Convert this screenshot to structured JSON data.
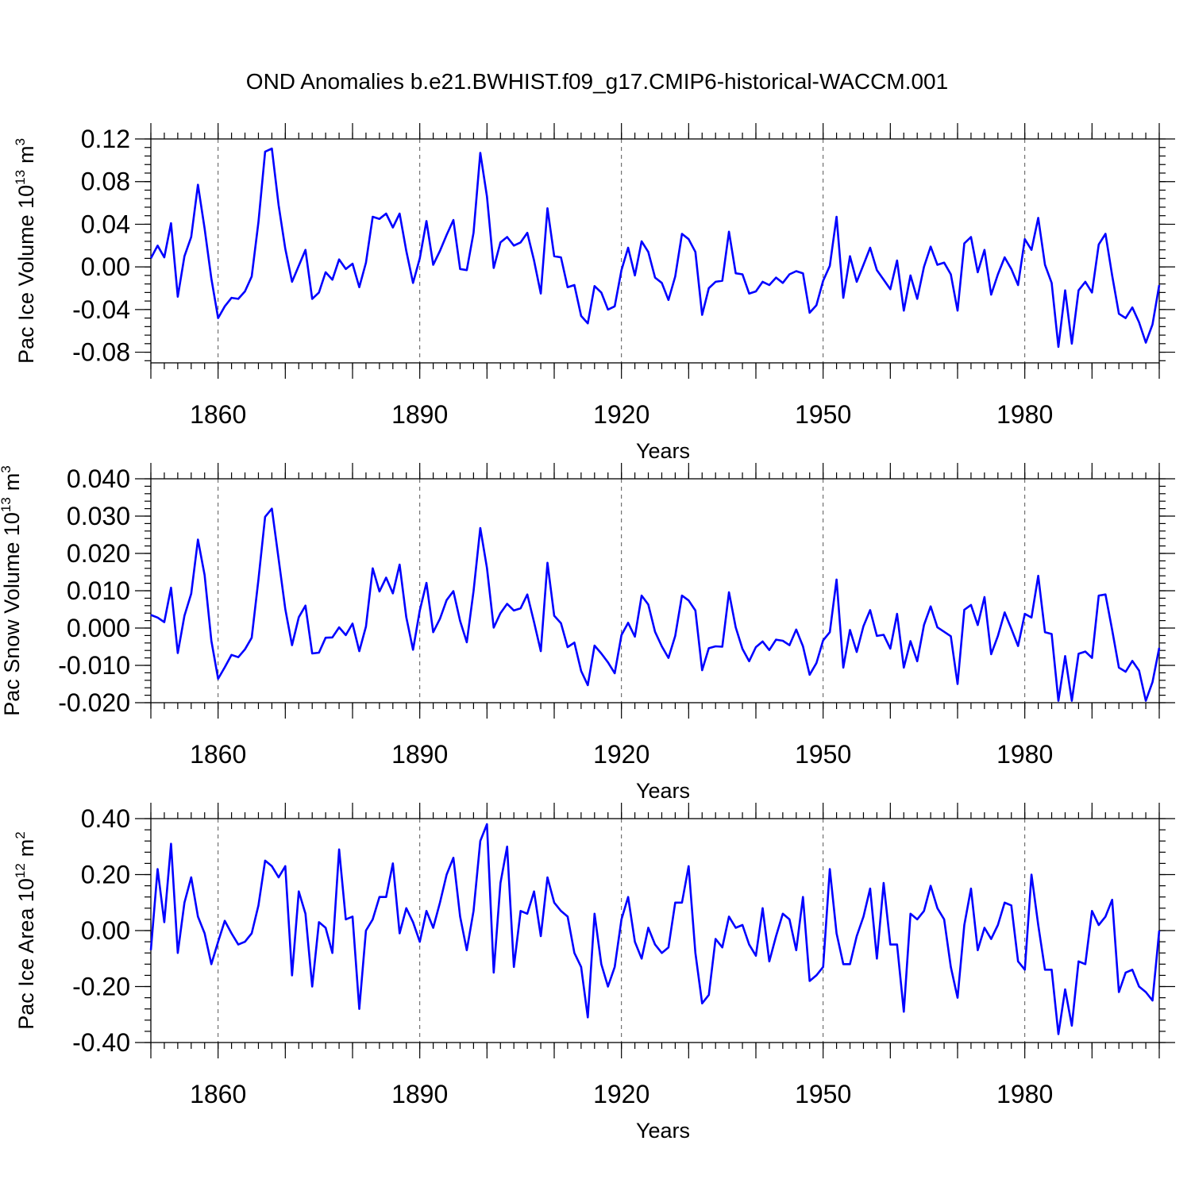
{
  "title": "OND Anomalies b.e21.BWHIST.f09_g17.CMIP6-historical-WACCM.001",
  "colors": {
    "line": "#0000ff",
    "axis": "#000000",
    "grid": "#555555"
  },
  "chart_data": [
    {
      "type": "line",
      "name": "pac-ice-volume",
      "ylabel_main": "Pac Ice Volume 10",
      "ylabel_exp": "13",
      "ylabel_unit": "m",
      "ylabel_unit_exp": "3",
      "xlabel": "Years",
      "xlim": [
        1850,
        2000
      ],
      "ylim": [
        -0.09,
        0.12
      ],
      "yticks": [
        0.12,
        0.08,
        0.04,
        0.0,
        -0.04,
        -0.08
      ],
      "ytick_labels": [
        "0.12",
        "0.08",
        "0.04",
        "0.00",
        "-0.04",
        "-0.08"
      ],
      "xticks": [
        1860,
        1890,
        1920,
        1950,
        1980
      ],
      "xtick_labels": [
        "1860",
        "1890",
        "1920",
        "1950",
        "1980"
      ],
      "grid_x": [
        1860,
        1890,
        1920,
        1950,
        1980
      ],
      "x_start": 1850,
      "values": [
        0.008,
        0.02,
        0.009,
        0.041,
        -0.028,
        0.01,
        0.028,
        0.077,
        0.036,
        -0.011,
        -0.048,
        -0.037,
        -0.029,
        -0.03,
        -0.023,
        -0.009,
        0.042,
        0.108,
        0.111,
        0.058,
        0.017,
        -0.014,
        0.001,
        0.016,
        -0.03,
        -0.024,
        -0.005,
        -0.012,
        0.007,
        -0.002,
        0.003,
        -0.019,
        0.004,
        0.047,
        0.045,
        0.05,
        0.037,
        0.05,
        0.015,
        -0.015,
        0.008,
        0.043,
        0.002,
        0.015,
        0.03,
        0.044,
        -0.002,
        -0.003,
        0.032,
        0.107,
        0.066,
        -0.001,
        0.023,
        0.028,
        0.02,
        0.023,
        0.032,
        0.006,
        -0.025,
        0.055,
        0.01,
        0.009,
        -0.019,
        -0.017,
        -0.046,
        -0.053,
        -0.018,
        -0.024,
        -0.04,
        -0.037,
        -0.003,
        0.018,
        -0.008,
        0.024,
        0.014,
        -0.01,
        -0.015,
        -0.031,
        -0.009,
        0.031,
        0.026,
        0.014,
        -0.045,
        -0.02,
        -0.014,
        -0.013,
        0.033,
        -0.006,
        -0.007,
        -0.025,
        -0.023,
        -0.014,
        -0.017,
        -0.01,
        -0.015,
        -0.007,
        -0.004,
        -0.006,
        -0.043,
        -0.036,
        -0.013,
        0.001,
        0.047,
        -0.029,
        0.01,
        -0.014,
        0.002,
        0.018,
        -0.003,
        -0.012,
        -0.021,
        0.006,
        -0.041,
        -0.008,
        -0.03,
        0.0,
        0.019,
        0.002,
        0.004,
        -0.007,
        -0.041,
        0.022,
        0.028,
        -0.005,
        0.016,
        -0.026,
        -0.007,
        0.009,
        -0.002,
        -0.017,
        0.026,
        0.016,
        0.046,
        0.002,
        -0.015,
        -0.075,
        -0.022,
        -0.072,
        -0.022,
        -0.014,
        -0.024,
        0.021,
        0.031,
        -0.008,
        -0.044,
        -0.048,
        -0.038,
        -0.052,
        -0.071,
        -0.054,
        -0.017
      ]
    },
    {
      "type": "line",
      "name": "pac-snow-volume",
      "ylabel_main": "Pac Snow Volume 10",
      "ylabel_exp": "13",
      "ylabel_unit": "m",
      "ylabel_unit_exp": "3",
      "xlabel": "Years",
      "xlim": [
        1850,
        2000
      ],
      "ylim": [
        -0.02,
        0.04
      ],
      "yticks": [
        0.04,
        0.03,
        0.02,
        0.01,
        0.0,
        -0.01,
        -0.02
      ],
      "ytick_labels": [
        "0.040",
        "0.030",
        "0.020",
        "0.010",
        "0.000",
        "-0.010",
        "-0.020"
      ],
      "xticks": [
        1860,
        1890,
        1920,
        1950,
        1980
      ],
      "xtick_labels": [
        "1860",
        "1890",
        "1920",
        "1950",
        "1980"
      ],
      "grid_x": [
        1860,
        1890,
        1920,
        1950,
        1980
      ],
      "x_start": 1850,
      "values": [
        0.0035,
        0.0028,
        0.0016,
        0.0108,
        -0.0067,
        0.0033,
        0.0092,
        0.0237,
        0.0142,
        -0.0034,
        -0.0136,
        -0.0105,
        -0.0072,
        -0.0078,
        -0.0057,
        -0.0026,
        0.013,
        0.0298,
        0.032,
        0.0185,
        0.0051,
        -0.0046,
        0.0029,
        0.006,
        -0.0068,
        -0.0066,
        -0.0026,
        -0.0025,
        0.0002,
        -0.0019,
        0.0012,
        -0.0062,
        0.0004,
        0.016,
        0.0098,
        0.0135,
        0.0093,
        0.017,
        0.0029,
        -0.0058,
        0.0047,
        0.0121,
        -0.0011,
        0.0025,
        0.0075,
        0.0099,
        0.0019,
        -0.0038,
        0.0099,
        0.0268,
        0.0161,
        0.0001,
        0.004,
        0.0065,
        0.0047,
        0.0053,
        0.009,
        0.0016,
        -0.0062,
        0.0175,
        0.0033,
        0.0013,
        -0.0051,
        -0.0039,
        -0.0115,
        -0.0153,
        -0.0047,
        -0.0068,
        -0.0092,
        -0.0121,
        -0.0019,
        0.0014,
        -0.0023,
        0.0087,
        0.0063,
        -0.001,
        -0.0049,
        -0.008,
        -0.0021,
        0.0087,
        0.0074,
        0.0047,
        -0.0113,
        -0.0054,
        -0.0049,
        -0.005,
        0.0096,
        0.0002,
        -0.0056,
        -0.0089,
        -0.0051,
        -0.0036,
        -0.0059,
        -0.0031,
        -0.0034,
        -0.0046,
        -0.0004,
        -0.0049,
        -0.0125,
        -0.0094,
        -0.0033,
        -0.0011,
        0.013,
        -0.0106,
        -0.0005,
        -0.0064,
        0.0005,
        0.0048,
        -0.0021,
        -0.0018,
        -0.0055,
        0.0038,
        -0.0106,
        -0.0035,
        -0.0089,
        0.0008,
        0.0058,
        0.0002,
        -0.001,
        -0.0022,
        -0.015,
        0.0049,
        0.0062,
        0.0008,
        0.0083,
        -0.007,
        -0.0021,
        0.0042,
        -0.0002,
        -0.0048,
        0.0038,
        0.0028,
        0.014,
        -0.0011,
        -0.0016,
        -0.0195,
        -0.0075,
        -0.0195,
        -0.0069,
        -0.0063,
        -0.008,
        0.0087,
        0.009,
        -0.0005,
        -0.0106,
        -0.0117,
        -0.0088,
        -0.0114,
        -0.0195,
        -0.0145,
        -0.0053
      ]
    },
    {
      "type": "line",
      "name": "pac-ice-area",
      "ylabel_main": "Pac Ice Area 10",
      "ylabel_exp": "12",
      "ylabel_unit": "m",
      "ylabel_unit_exp": "2",
      "xlabel": "Years",
      "xlim": [
        1850,
        2000
      ],
      "ylim": [
        -0.4,
        0.4
      ],
      "yticks": [
        0.4,
        0.2,
        0.0,
        -0.2,
        -0.4
      ],
      "ytick_labels": [
        "0.40",
        "0.20",
        "0.00",
        "-0.20",
        "-0.40"
      ],
      "xticks": [
        1860,
        1890,
        1920,
        1950,
        1980
      ],
      "xtick_labels": [
        "1860",
        "1890",
        "1920",
        "1950",
        "1980"
      ],
      "grid_x": [
        1860,
        1890,
        1920,
        1950,
        1980
      ],
      "x_start": 1850,
      "values": [
        -0.07,
        0.22,
        0.03,
        0.31,
        -0.08,
        0.1,
        0.19,
        0.05,
        -0.01,
        -0.12,
        -0.04,
        0.035,
        -0.01,
        -0.05,
        -0.04,
        -0.01,
        0.09,
        0.25,
        0.23,
        0.19,
        0.23,
        -0.16,
        0.14,
        0.06,
        -0.2,
        0.03,
        0.01,
        -0.08,
        0.29,
        0.04,
        0.05,
        -0.28,
        0.0,
        0.04,
        0.12,
        0.12,
        0.24,
        -0.01,
        0.08,
        0.03,
        -0.04,
        0.07,
        0.01,
        0.1,
        0.2,
        0.26,
        0.05,
        -0.07,
        0.07,
        0.32,
        0.38,
        -0.15,
        0.17,
        0.3,
        -0.13,
        0.07,
        0.06,
        0.14,
        -0.02,
        0.19,
        0.1,
        0.07,
        0.05,
        -0.08,
        -0.13,
        -0.31,
        0.06,
        -0.12,
        -0.2,
        -0.13,
        0.04,
        0.12,
        -0.04,
        -0.1,
        0.01,
        -0.05,
        -0.08,
        -0.06,
        0.1,
        0.1,
        0.23,
        -0.08,
        -0.26,
        -0.23,
        -0.03,
        -0.06,
        0.05,
        0.01,
        0.02,
        -0.05,
        -0.09,
        0.08,
        -0.11,
        -0.02,
        0.06,
        0.04,
        -0.07,
        0.12,
        -0.18,
        -0.16,
        -0.13,
        0.22,
        -0.01,
        -0.12,
        -0.12,
        -0.02,
        0.05,
        0.15,
        -0.1,
        0.17,
        -0.05,
        -0.05,
        -0.29,
        0.06,
        0.04,
        0.07,
        0.16,
        0.08,
        0.04,
        -0.13,
        -0.24,
        0.02,
        0.15,
        -0.07,
        0.01,
        -0.03,
        0.02,
        0.1,
        0.09,
        -0.11,
        -0.14,
        0.2,
        0.02,
        -0.14,
        -0.14,
        -0.37,
        -0.21,
        -0.34,
        -0.11,
        -0.12,
        0.07,
        0.02,
        0.05,
        0.11,
        -0.22,
        -0.15,
        -0.14,
        -0.2,
        -0.22,
        -0.25,
        0.0
      ]
    }
  ]
}
